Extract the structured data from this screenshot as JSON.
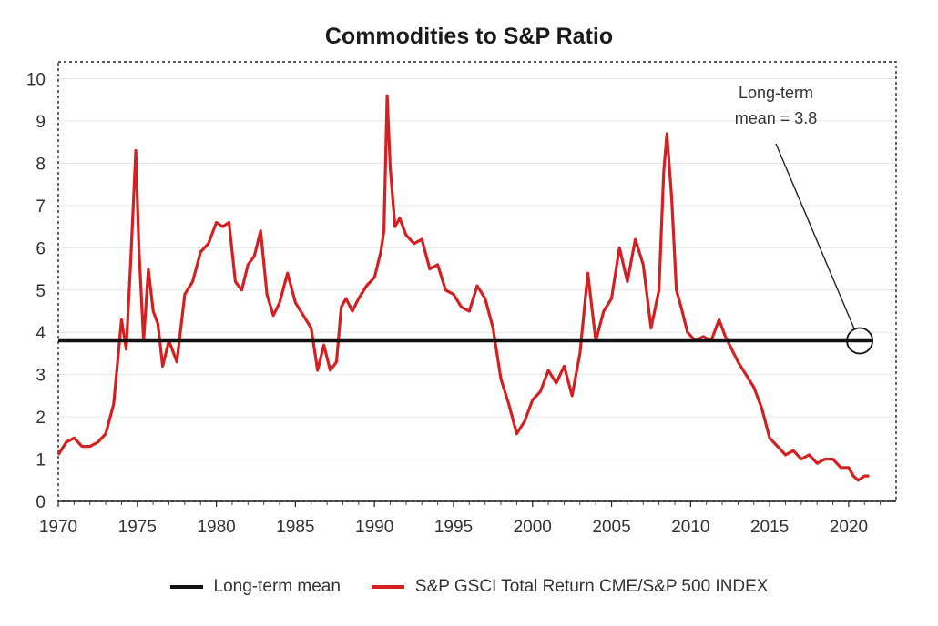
{
  "chart_data": {
    "type": "line",
    "title": "Commodities to S&P Ratio",
    "xlabel": "",
    "ylabel": "",
    "xlim": [
      1970,
      2023
    ],
    "ylim": [
      0,
      10.4
    ],
    "x_ticks": [
      "1970",
      "1975",
      "1980",
      "1985",
      "1990",
      "1995",
      "2000",
      "2005",
      "2010",
      "2015",
      "2020"
    ],
    "y_ticks": [
      "0",
      "1",
      "2",
      "3",
      "4",
      "5",
      "6",
      "7",
      "8",
      "9",
      "10"
    ],
    "grid": true,
    "legend_position": "bottom",
    "annotation": {
      "text_lines": [
        "Long-term",
        "mean = 3.8"
      ],
      "x": 2020.7,
      "y": 3.8
    },
    "series": [
      {
        "name": "Long-term mean",
        "color": "#111111",
        "x": [
          1970,
          2021.5
        ],
        "y": [
          3.8,
          3.8
        ]
      },
      {
        "name": "S&P GSCI Total Return CME/S&P 500 INDEX",
        "color": "#d42020",
        "x": [
          1970.0,
          1970.5,
          1971.0,
          1971.5,
          1972.0,
          1972.5,
          1973.0,
          1973.5,
          1973.8,
          1974.0,
          1974.3,
          1974.6,
          1974.9,
          1975.1,
          1975.4,
          1975.7,
          1976.0,
          1976.3,
          1976.6,
          1977.0,
          1977.5,
          1978.0,
          1978.5,
          1979.0,
          1979.5,
          1980.0,
          1980.4,
          1980.8,
          1981.2,
          1981.6,
          1982.0,
          1982.4,
          1982.8,
          1983.2,
          1983.6,
          1984.0,
          1984.5,
          1985.0,
          1985.5,
          1986.0,
          1986.4,
          1986.8,
          1987.2,
          1987.6,
          1987.9,
          1988.2,
          1988.6,
          1989.0,
          1989.5,
          1990.0,
          1990.4,
          1990.6,
          1990.8,
          1991.0,
          1991.3,
          1991.6,
          1992.0,
          1992.5,
          1993.0,
          1993.5,
          1994.0,
          1994.5,
          1995.0,
          1995.5,
          1996.0,
          1996.5,
          1997.0,
          1997.5,
          1998.0,
          1998.5,
          1999.0,
          1999.5,
          2000.0,
          2000.5,
          2001.0,
          2001.5,
          2002.0,
          2002.5,
          2003.0,
          2003.5,
          2004.0,
          2004.5,
          2005.0,
          2005.5,
          2006.0,
          2006.5,
          2007.0,
          2007.5,
          2008.0,
          2008.3,
          2008.5,
          2008.8,
          2009.1,
          2009.4,
          2009.8,
          2010.3,
          2010.8,
          2011.3,
          2011.8,
          2012.2,
          2012.6,
          2013.0,
          2013.5,
          2014.0,
          2014.5,
          2015.0,
          2015.5,
          2016.0,
          2016.5,
          2017.0,
          2017.5,
          2018.0,
          2018.5,
          2019.0,
          2019.5,
          2020.0,
          2020.3,
          2020.6,
          2021.0,
          2021.3
        ],
        "y": [
          1.1,
          1.4,
          1.5,
          1.3,
          1.3,
          1.4,
          1.6,
          2.3,
          3.5,
          4.3,
          3.6,
          5.8,
          8.3,
          6.0,
          3.8,
          5.5,
          4.5,
          4.2,
          3.2,
          3.8,
          3.3,
          4.9,
          5.2,
          5.9,
          6.1,
          6.6,
          6.5,
          6.6,
          5.2,
          5.0,
          5.6,
          5.8,
          6.4,
          4.9,
          4.4,
          4.7,
          5.4,
          4.7,
          4.4,
          4.1,
          3.1,
          3.7,
          3.1,
          3.3,
          4.6,
          4.8,
          4.5,
          4.8,
          5.1,
          5.3,
          5.9,
          6.4,
          9.6,
          7.9,
          6.5,
          6.7,
          6.3,
          6.1,
          6.2,
          5.5,
          5.6,
          5.0,
          4.9,
          4.6,
          4.5,
          5.1,
          4.8,
          4.1,
          2.9,
          2.3,
          1.6,
          1.9,
          2.4,
          2.6,
          3.1,
          2.8,
          3.2,
          2.5,
          3.5,
          5.4,
          3.8,
          4.5,
          4.8,
          6.0,
          5.2,
          6.2,
          5.6,
          4.1,
          5.0,
          7.8,
          8.7,
          7.2,
          5.0,
          4.6,
          4.0,
          3.8,
          3.9,
          3.8,
          4.3,
          3.9,
          3.6,
          3.3,
          3.0,
          2.7,
          2.2,
          1.5,
          1.3,
          1.1,
          1.2,
          1.0,
          1.1,
          0.9,
          1.0,
          1.0,
          0.8,
          0.8,
          0.6,
          0.5,
          0.6,
          0.6
        ]
      }
    ]
  }
}
